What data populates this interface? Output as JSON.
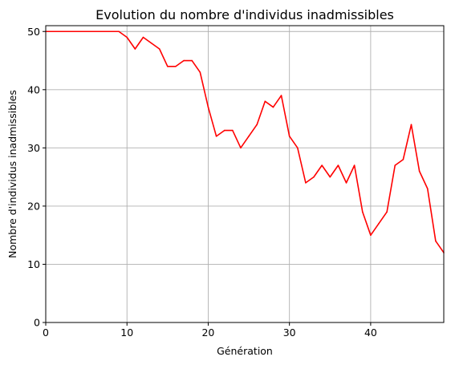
{
  "chart_data": {
    "type": "line",
    "title": "Evolution du nombre d'individus inadmissibles",
    "xlabel": "Génération",
    "ylabel": "Nombre d'individus inadmissibles",
    "xlim": [
      0,
      49
    ],
    "ylim": [
      0,
      51
    ],
    "xticks": [
      0,
      10,
      20,
      30,
      40
    ],
    "yticks": [
      0,
      10,
      20,
      30,
      40,
      50
    ],
    "grid": true,
    "series": [
      {
        "color": "#ff0000",
        "x": [
          0,
          1,
          2,
          3,
          4,
          5,
          6,
          7,
          8,
          9,
          10,
          11,
          12,
          13,
          14,
          15,
          16,
          17,
          18,
          19,
          20,
          21,
          22,
          23,
          24,
          25,
          26,
          27,
          28,
          29,
          30,
          31,
          32,
          33,
          34,
          35,
          36,
          37,
          38,
          39,
          40,
          41,
          42,
          43,
          44,
          45,
          46,
          47,
          48,
          49
        ],
        "values": [
          50,
          50,
          50,
          50,
          50,
          50,
          50,
          50,
          50,
          50,
          49,
          47,
          49,
          48,
          47,
          44,
          44,
          45,
          45,
          43,
          37,
          32,
          33,
          33,
          30,
          32,
          34,
          38,
          37,
          39,
          32,
          30,
          24,
          25,
          27,
          25,
          27,
          24,
          27,
          19,
          15,
          17,
          19,
          27,
          28,
          34,
          26,
          23,
          14,
          12
        ]
      }
    ]
  }
}
